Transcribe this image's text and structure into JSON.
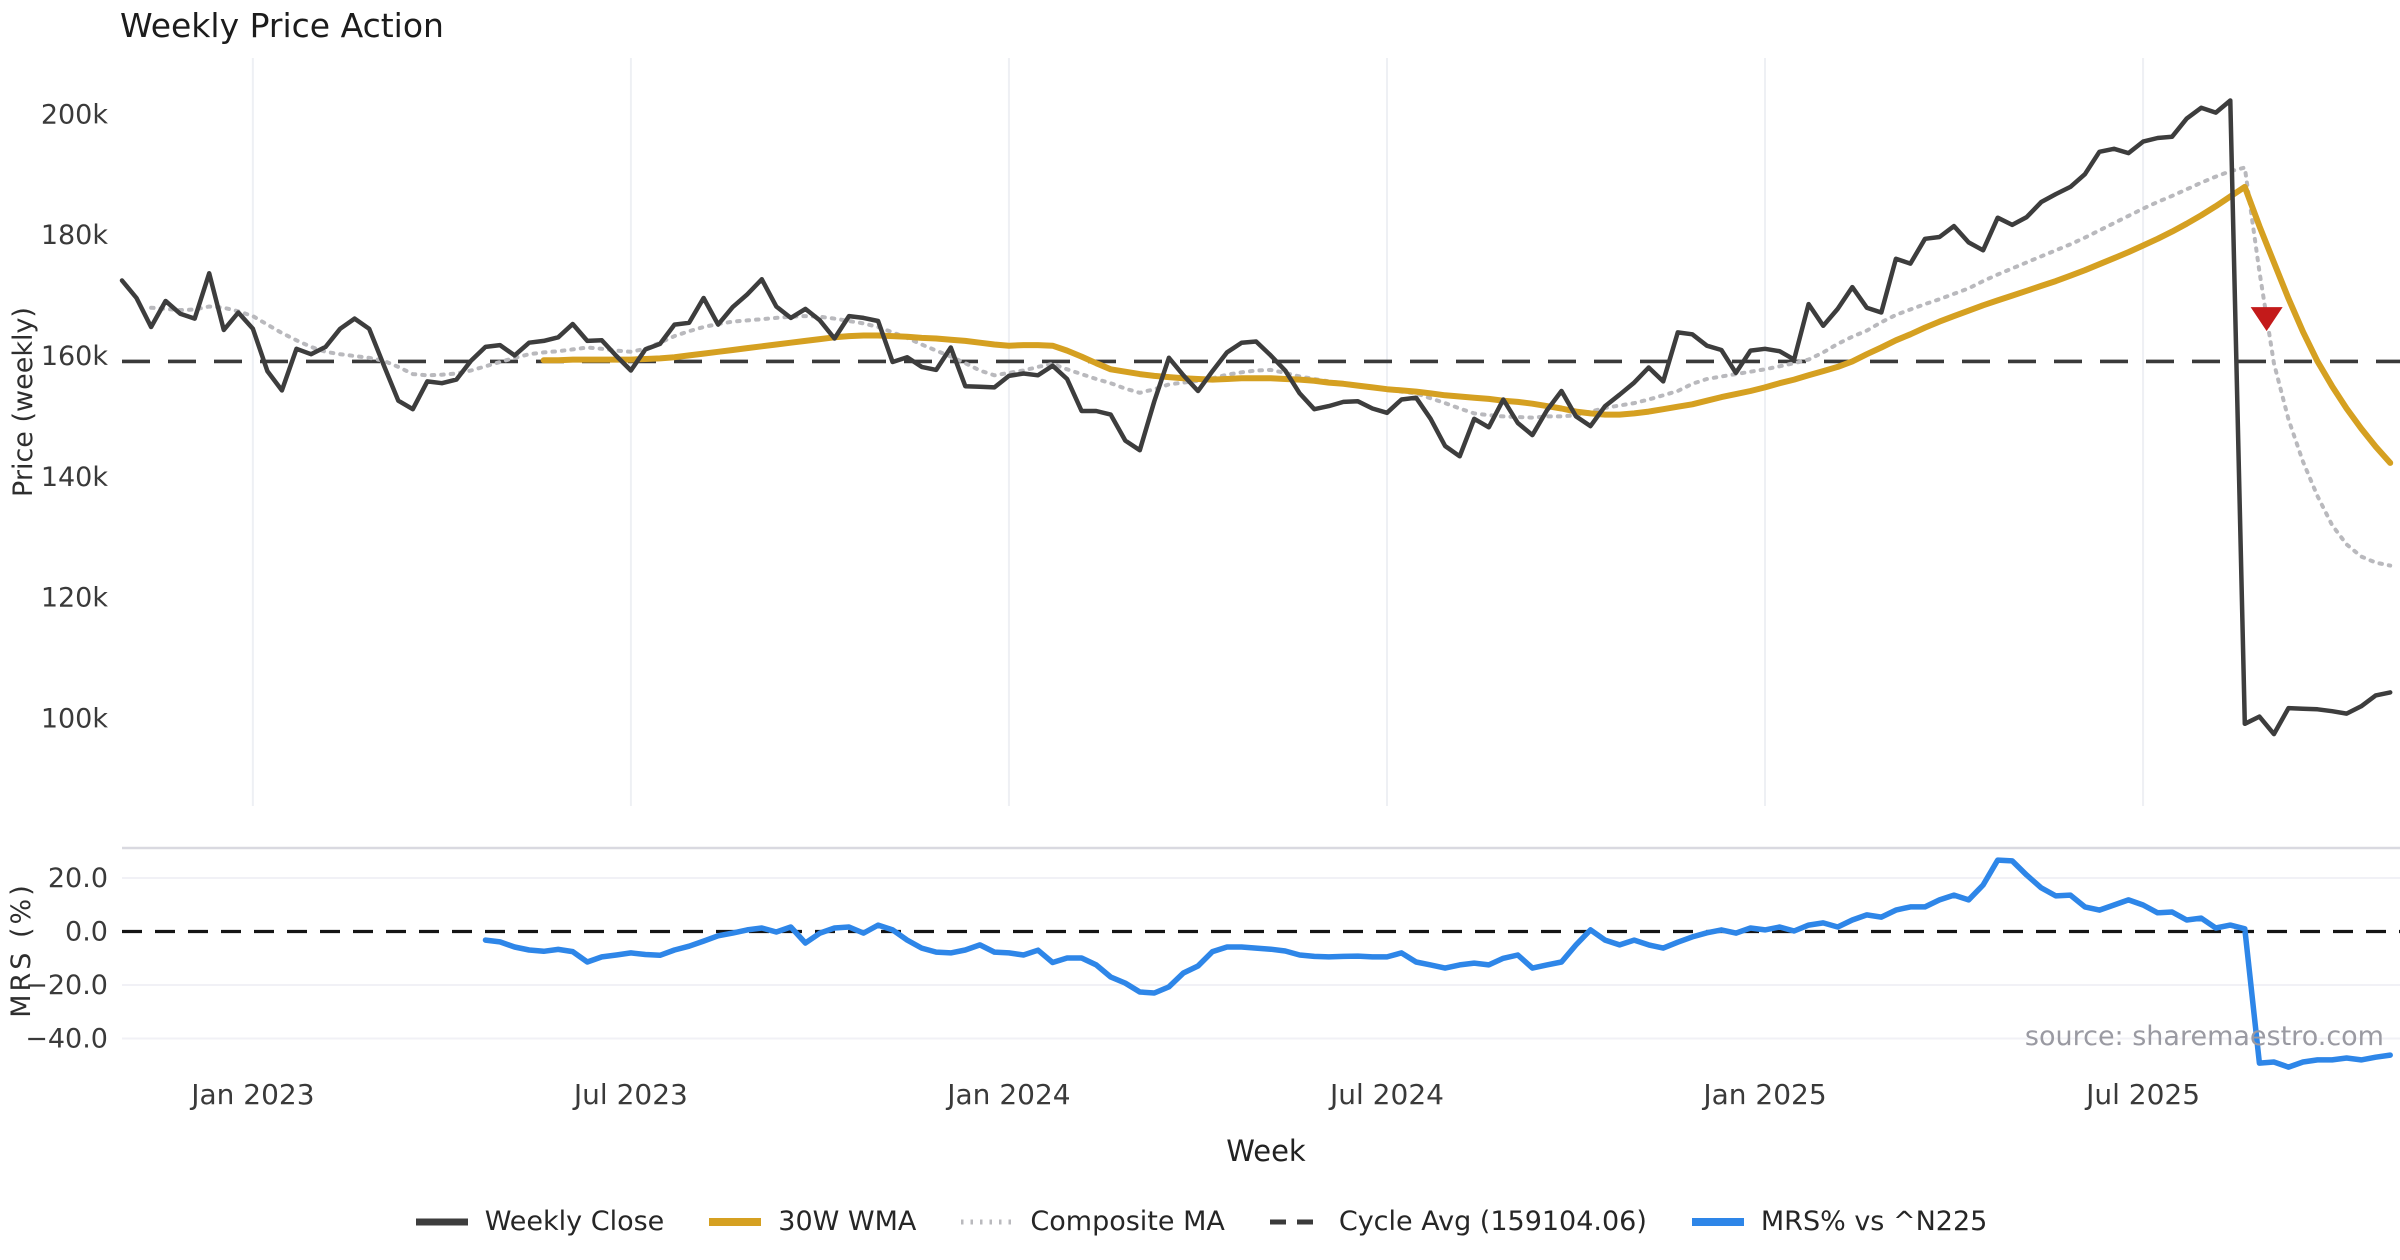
{
  "title": "Weekly Price Action",
  "source": "source: sharemaestro.com",
  "colors": {
    "weekly_close": "#3d3d3d",
    "wma": "#d5a021",
    "composite": "#b9b9bd",
    "cycle_avg": "#3a3a3a",
    "mrs": "#2e86e8",
    "signal_marker": "#c31a1a",
    "gridline": "#eef0f4",
    "panel_border": "#d9d9e0",
    "tick_text": "#3a3a3a"
  },
  "legend": [
    {
      "label": "Weekly Close",
      "color": "#3d3d3d",
      "dash": ""
    },
    {
      "label": "30W WMA",
      "color": "#d5a021",
      "dash": ""
    },
    {
      "label": "Composite MA",
      "color": "#b9b9bd",
      "dash": "2.5 7"
    },
    {
      "label": "Cycle Avg (159104.06)",
      "color": "#3a3a3a",
      "dash": "16 11"
    },
    {
      "label": "MRS% vs ^N225",
      "color": "#2e86e8",
      "dash": ""
    }
  ],
  "chart_data": {
    "type": "line",
    "x_unit": "week",
    "weeks_total": 157,
    "x_label": "Week",
    "x_ticks": [
      {
        "week": 9,
        "label": "Jan 2023"
      },
      {
        "week": 35,
        "label": "Jul 2023"
      },
      {
        "week": 61,
        "label": "Jan 2024"
      },
      {
        "week": 87,
        "label": "Jul 2024"
      },
      {
        "week": 113,
        "label": "Jan 2025"
      },
      {
        "week": 139,
        "label": "Jul 2025"
      }
    ],
    "panels": [
      {
        "name": "price",
        "ylabel": "Price (weekly)",
        "ylim_k": [
          93,
          207
        ],
        "y_ticks": [
          {
            "value": 200,
            "label": "200k"
          },
          {
            "value": 180,
            "label": "180k"
          },
          {
            "value": 160,
            "label": "160k"
          },
          {
            "value": 140,
            "label": "140k"
          },
          {
            "value": 120,
            "label": "120k"
          },
          {
            "value": 100,
            "label": "100k"
          }
        ],
        "cycle_avg": 159104.06,
        "cycle_avg_k": 159.104,
        "signal_marker": {
          "shape": "triangle-down",
          "color": "#c31a1a",
          "week": 147.5,
          "value_k": 166.1
        },
        "series": [
          {
            "name": "Weekly Close",
            "color": "#3d3d3d",
            "width": 4.5,
            "dash": "",
            "start_week": 0,
            "values": [
              172.5,
              169.6,
              164.8,
              169.1,
              167.0,
              166.2,
              173.7,
              164.3,
              167.2,
              164.5,
              157.5,
              154.3,
              161.2,
              160.3,
              161.5,
              164.5,
              166.2,
              164.5,
              158.5,
              152.6,
              151.2,
              155.8,
              155.5,
              156.1,
              159.2,
              161.5,
              161.8,
              160.1,
              162.2,
              162.5,
              163.1,
              165.3,
              162.5,
              162.6,
              160.0,
              157.6,
              161.1,
              162.0,
              165.2,
              165.5,
              169.6,
              165.2,
              168.1,
              170.2,
              172.7,
              168.2,
              166.3,
              167.8,
              165.9,
              162.9,
              166.6,
              166.3,
              165.8,
              159.0,
              159.8,
              158.2,
              157.7,
              161.4,
              155.0,
              154.9,
              154.8,
              156.7,
              157.1,
              156.8,
              158.4,
              156.2,
              150.9,
              150.9,
              150.3,
              146.0,
              144.4,
              152.5,
              159.7,
              156.8,
              154.2,
              157.5,
              160.6,
              162.2,
              162.4,
              160.1,
              157.6,
              153.8,
              151.2,
              151.7,
              152.4,
              152.5,
              151.3,
              150.6,
              152.8,
              153.1,
              149.6,
              145.1,
              143.4,
              149.6,
              148.2,
              152.8,
              148.9,
              146.9,
              151.0,
              154.2,
              150.0,
              148.4,
              151.7,
              153.6,
              155.6,
              158.1,
              155.8,
              163.9,
              163.6,
              161.7,
              161.0,
              157.2,
              160.9,
              161.2,
              160.8,
              159.4,
              168.6,
              165.0,
              167.8,
              171.4,
              168.0,
              167.2,
              176.1,
              175.3,
              179.4,
              179.7,
              181.5,
              178.8,
              177.5,
              182.9,
              181.7,
              183.0,
              185.5,
              186.8,
              188.0,
              190.1,
              193.8,
              194.3,
              193.6,
              195.5,
              196.1,
              196.3,
              199.3,
              201.1,
              200.3,
              202.3,
              99.1,
              100.3,
              97.4,
              101.7,
              101.6,
              101.5,
              101.2,
              100.8,
              102.0,
              103.8,
              104.3
            ]
          },
          {
            "name": "30W WMA",
            "color": "#d5a021",
            "width": 6,
            "dash": "",
            "start_week": 29,
            "values": [
              159.3,
              159.3,
              159.4,
              159.4,
              159.4,
              159.4,
              159.4,
              159.5,
              159.6,
              159.8,
              160.1,
              160.4,
              160.7,
              161.0,
              161.3,
              161.6,
              161.9,
              162.2,
              162.5,
              162.8,
              163.1,
              163.3,
              163.4,
              163.4,
              163.3,
              163.2,
              163.0,
              162.9,
              162.7,
              162.5,
              162.2,
              161.9,
              161.7,
              161.8,
              161.8,
              161.7,
              160.9,
              159.9,
              158.8,
              157.8,
              157.4,
              157.0,
              156.7,
              156.5,
              156.3,
              156.2,
              156.1,
              156.2,
              156.3,
              156.3,
              156.3,
              156.2,
              156.1,
              155.9,
              155.6,
              155.4,
              155.1,
              154.8,
              154.5,
              154.3,
              154.1,
              153.8,
              153.5,
              153.3,
              153.1,
              152.9,
              152.6,
              152.4,
              152.1,
              151.7,
              151.3,
              150.8,
              150.5,
              150.3,
              150.3,
              150.5,
              150.8,
              151.2,
              151.6,
              152.0,
              152.6,
              153.2,
              153.7,
              154.2,
              154.8,
              155.5,
              156.1,
              156.8,
              157.5,
              158.2,
              159.1,
              160.3,
              161.4,
              162.6,
              163.6,
              164.7,
              165.7,
              166.6,
              167.5,
              168.4,
              169.2,
              170.0,
              170.8,
              171.6,
              172.4,
              173.3,
              174.2,
              175.2,
              176.2,
              177.2,
              178.3,
              179.4,
              180.6,
              181.9,
              183.3,
              184.8,
              186.4,
              188.0,
              181.5,
              175.5,
              169.5,
              164.0,
              159.1,
              155.0,
              151.3,
              148.0,
              145.0,
              142.3
            ]
          },
          {
            "name": "Composite MA",
            "color": "#b9b9bd",
            "width": 4,
            "dash": "2.5 7",
            "start_week": 2,
            "values": [
              168.0,
              167.8,
              167.6,
              167.7,
              168.2,
              168.0,
              167.4,
              166.6,
              165.2,
              163.8,
              162.6,
              161.5,
              160.7,
              160.3,
              160.0,
              159.7,
              159.2,
              158.2,
              157.0,
              156.8,
              156.9,
              157.1,
              157.6,
              158.3,
              159.0,
              159.7,
              160.3,
              160.6,
              160.8,
              161.1,
              161.4,
              161.2,
              160.9,
              160.7,
              161.2,
              162.2,
              163.3,
              164.1,
              164.8,
              165.3,
              165.7,
              165.9,
              166.1,
              166.3,
              166.5,
              166.6,
              166.5,
              166.2,
              165.8,
              165.4,
              164.8,
              163.9,
              163.0,
              161.9,
              160.9,
              159.9,
              158.8,
              157.6,
              156.8,
              157.2,
              157.6,
              158.2,
              158.7,
              157.8,
              157.0,
              156.2,
              155.5,
              154.6,
              153.9,
              154.5,
              155.3,
              155.6,
              155.9,
              156.3,
              156.9,
              157.3,
              157.6,
              157.7,
              157.2,
              156.6,
              156.2,
              155.8,
              155.5,
              155.2,
              154.8,
              154.4,
              154.1,
              153.8,
              153.0,
              152.2,
              151.3,
              150.5,
              150.2,
              150.0,
              149.9,
              149.8,
              150.0,
              150.0,
              150.2,
              150.8,
              151.4,
              151.8,
              152.2,
              152.8,
              153.5,
              154.2,
              155.4,
              156.2,
              156.6,
              157.0,
              157.4,
              157.8,
              158.3,
              158.8,
              159.4,
              160.6,
              162.0,
              163.2,
              164.2,
              165.6,
              166.8,
              167.7,
              168.6,
              169.4,
              170.3,
              171.2,
              172.4,
              173.5,
              174.5,
              175.5,
              176.5,
              177.5,
              178.5,
              179.6,
              180.8,
              182.0,
              183.2,
              184.4,
              185.5,
              186.5,
              187.6,
              188.7,
              189.7,
              190.6,
              191.2,
              174.0,
              158.8,
              149.5,
              142.5,
              136.8,
              132.0,
              128.8,
              126.8,
              125.8,
              125.3
            ]
          }
        ]
      },
      {
        "name": "mrs",
        "ylabel": "MRS (%)",
        "ylim": [
          -55,
          31
        ],
        "zero_line": 0.0,
        "y_ticks": [
          {
            "value": 20,
            "label": "20.0"
          },
          {
            "value": 0,
            "label": "0.0"
          },
          {
            "value": -20,
            "label": "−20.0"
          },
          {
            "value": -40,
            "label": "−40.0"
          }
        ],
        "series": [
          {
            "name": "MRS% vs ^N225",
            "color": "#2e86e8",
            "width": 5.5,
            "dash": "",
            "start_week": 25,
            "values": [
              -3.2,
              -3.9,
              -5.8,
              -6.9,
              -7.4,
              -6.7,
              -7.5,
              -11.4,
              -9.5,
              -8.8,
              -8.0,
              -8.6,
              -8.9,
              -6.9,
              -5.5,
              -3.6,
              -1.6,
              -0.6,
              0.6,
              1.3,
              -0.2,
              1.7,
              -4.3,
              -0.6,
              1.3,
              1.7,
              -0.6,
              2.4,
              0.6,
              -3.2,
              -6.2,
              -7.7,
              -8.0,
              -6.9,
              -5.0,
              -7.7,
              -8.0,
              -8.8,
              -7.0,
              -11.6,
              -9.9,
              -9.9,
              -12.5,
              -17.0,
              -19.3,
              -22.6,
              -23.0,
              -20.7,
              -15.5,
              -12.9,
              -7.5,
              -5.8,
              -5.8,
              -6.2,
              -6.6,
              -7.3,
              -8.8,
              -9.3,
              -9.5,
              -9.3,
              -9.2,
              -9.5,
              -9.5,
              -8.0,
              -11.4,
              -12.5,
              -13.7,
              -12.5,
              -11.8,
              -12.5,
              -10.0,
              -8.8,
              -13.7,
              -12.5,
              -11.4,
              -5.0,
              0.6,
              -3.2,
              -5.0,
              -3.2,
              -5.0,
              -6.2,
              -4.0,
              -2.0,
              -0.5,
              0.6,
              -0.6,
              1.3,
              0.6,
              1.7,
              0.2,
              2.4,
              3.2,
              1.7,
              4.3,
              6.2,
              5.4,
              8.0,
              9.2,
              9.2,
              11.8,
              13.6,
              11.8,
              17.4,
              26.7,
              26.4,
              21.1,
              16.3,
              13.3,
              13.6,
              9.2,
              8.0,
              9.9,
              11.8,
              9.9,
              7.0,
              7.3,
              4.3,
              5.0,
              1.3,
              2.4,
              1.0,
              -49.2,
              -48.8,
              -50.7,
              -48.8,
              -48.0,
              -48.0,
              -47.3,
              -48.0,
              -47.0,
              -46.2
            ]
          }
        ]
      }
    ]
  }
}
